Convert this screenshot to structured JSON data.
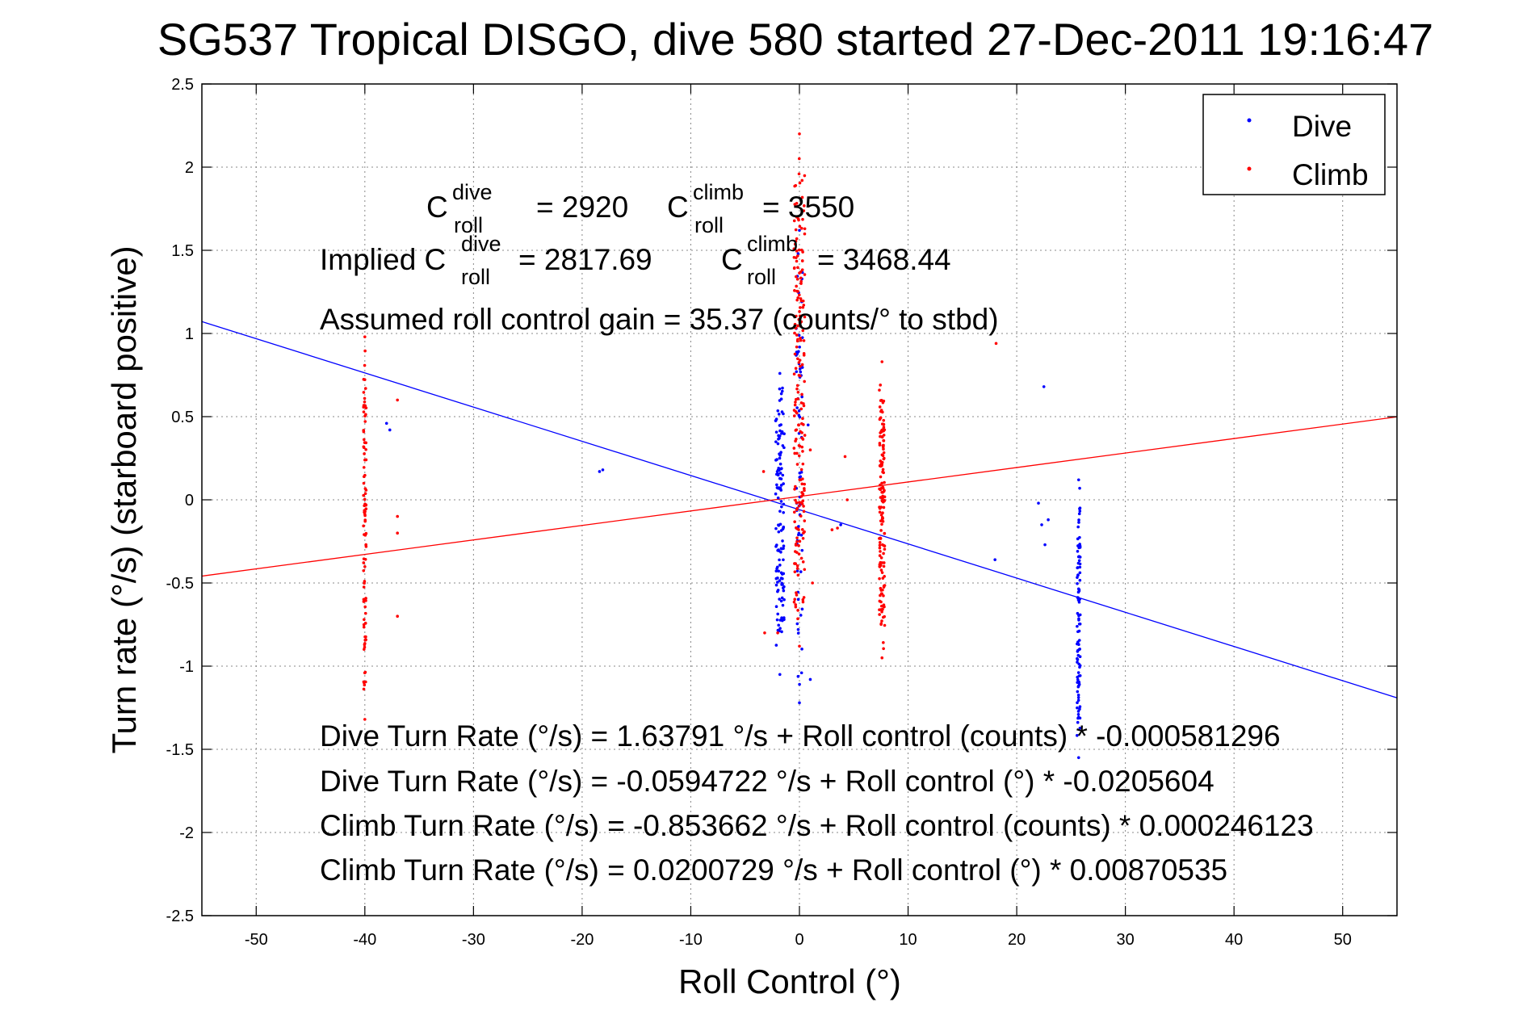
{
  "chart_data": {
    "type": "scatter",
    "title": "SG537 Tropical DISGO, dive 580 started 27-Dec-2011 19:16:47",
    "xlabel": "Roll Control (°)",
    "ylabel": "Turn rate (°/s) (starboard positive)",
    "xlim": [
      -55,
      55
    ],
    "ylim": [
      -2.5,
      2.5
    ],
    "xticks": [
      -50,
      -40,
      -30,
      -20,
      -10,
      0,
      10,
      20,
      30,
      40,
      50
    ],
    "yticks": [
      2.5,
      2,
      1.5,
      1,
      0.5,
      0,
      -0.5,
      -1,
      -1.5,
      -2,
      -2.5
    ],
    "grid": true,
    "legend_position": "top-right",
    "legend": [
      {
        "label": "Dive",
        "color": "#0000ff"
      },
      {
        "label": "Climb",
        "color": "#ff0000"
      }
    ],
    "fit_lines": [
      {
        "series": "Dive",
        "color": "#0000ff",
        "intercept": -0.0594722,
        "slope": -0.0205604
      },
      {
        "series": "Climb",
        "color": "#ff0000",
        "intercept": 0.0200729,
        "slope": 0.00870535
      }
    ],
    "series": [
      {
        "name": "Dive",
        "color": "#0000ff",
        "clusters": [
          {
            "x": -1.8,
            "ymin": -1.05,
            "ymax": 0.76,
            "n": 130,
            "spread": 0.8
          },
          {
            "x": 0.0,
            "ymin": -1.22,
            "ymax": 1.62,
            "n": 60,
            "spread": 0.6
          },
          {
            "x": 25.7,
            "ymin": -1.55,
            "ymax": 0.12,
            "n": 95,
            "spread": 0.3
          }
        ],
        "points": [
          [
            -38.0,
            0.46
          ],
          [
            -37.7,
            0.42
          ],
          [
            -18.4,
            0.17
          ],
          [
            -18.1,
            0.18
          ],
          [
            0.8,
            0.45
          ],
          [
            1.0,
            -1.08
          ],
          [
            0.2,
            -1.04
          ],
          [
            22.5,
            0.68
          ],
          [
            18.0,
            -0.36
          ],
          [
            22.0,
            -0.02
          ],
          [
            22.3,
            -0.15
          ],
          [
            22.6,
            -0.27
          ],
          [
            22.9,
            -0.12
          ],
          [
            3.8,
            -0.15
          ]
        ]
      },
      {
        "name": "Climb",
        "color": "#ff0000",
        "clusters": [
          {
            "x": -40.0,
            "ymin": -1.32,
            "ymax": 0.98,
            "n": 90,
            "spread": 0.25
          },
          {
            "x": 0.0,
            "ymin": -0.88,
            "ymax": 2.2,
            "n": 200,
            "spread": 1.0
          },
          {
            "x": 7.6,
            "ymin": -0.95,
            "ymax": 0.83,
            "n": 150,
            "spread": 0.5
          }
        ],
        "points": [
          [
            -37.0,
            0.6
          ],
          [
            -37.0,
            -0.1
          ],
          [
            -37.0,
            -0.2
          ],
          [
            -37.0,
            -0.7
          ],
          [
            -3.3,
            0.17
          ],
          [
            -3.2,
            -0.8
          ],
          [
            -2.0,
            -0.8
          ],
          [
            4.2,
            0.26
          ],
          [
            4.4,
            0.0
          ],
          [
            3.5,
            -0.17
          ],
          [
            3.0,
            -0.18
          ],
          [
            18.1,
            0.94
          ],
          [
            1.0,
            0.3
          ],
          [
            1.2,
            -0.5
          ]
        ]
      }
    ],
    "annotations": {
      "croll_dive": {
        "base": "C",
        "sup": "dive",
        "sub": "roll",
        "value": "= 2920"
      },
      "croll_climb": {
        "base": "C",
        "sup": "climb",
        "sub": "roll",
        "value": "= 3550"
      },
      "implied_prefix": "Implied C",
      "implied_dive": {
        "sup": "dive",
        "sub": "roll",
        "value": "= 2817.69"
      },
      "implied_climb": {
        "base": "C",
        "sup": "climb",
        "sub": "roll",
        "value": "= 3468.44"
      },
      "gain": "Assumed roll control gain = 35.37 (counts/° to stbd)",
      "eq1": "Dive Turn Rate (°/s) = 1.63791 °/s + Roll control (counts) * -0.000581296",
      "eq2": "Dive Turn Rate (°/s) = -0.0594722 °/s + Roll control (°) * -0.0205604",
      "eq3": "Climb Turn Rate (°/s) = -0.853662 °/s + Roll control (counts) * 0.000246123",
      "eq4": "Climb Turn Rate (°/s) = 0.0200729 °/s + Roll control (°) * 0.00870535"
    }
  }
}
